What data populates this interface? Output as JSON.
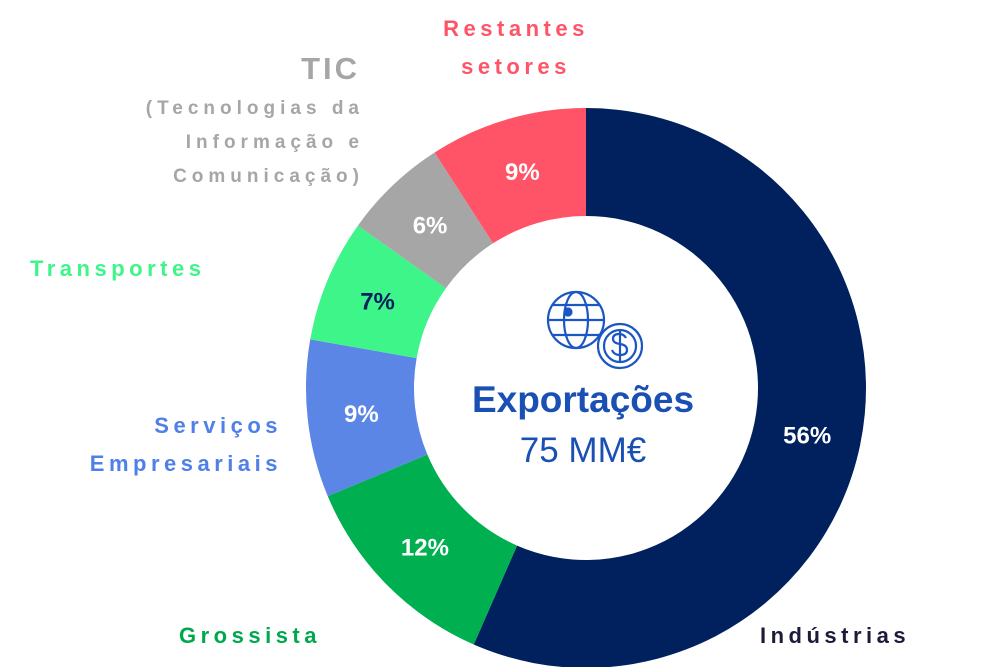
{
  "chart_data": {
    "type": "donut",
    "center_title": "Exportações",
    "center_subtitle": "75 MM€",
    "categories": [
      "Indústrias",
      "Grossista",
      "Serviços Empresariais",
      "Transportes",
      "TIC",
      "Restantes setores"
    ],
    "values": [
      56,
      12,
      9,
      7,
      6,
      9
    ],
    "value_labels": [
      "56%",
      "12%",
      "9%",
      "7%",
      "6%",
      "9%"
    ],
    "colors": [
      "#00215e",
      "#00b050",
      "#5b86e5",
      "#3ef58a",
      "#a6a6a6",
      "#ff5468"
    ],
    "category_label_colors": [
      "#1c1c3a",
      "#00a84d",
      "#4f7fe8",
      "#3ef58a",
      "#a6a6a6",
      "#ff5468"
    ],
    "value_label_colors": [
      "#ffffff",
      "#ffffff",
      "#ffffff",
      "#00215e",
      "#ffffff",
      "#ffffff"
    ],
    "annotations": [
      {
        "text": "(Tecnologias da Informação e Comunicação)",
        "category": 4
      }
    ]
  }
}
